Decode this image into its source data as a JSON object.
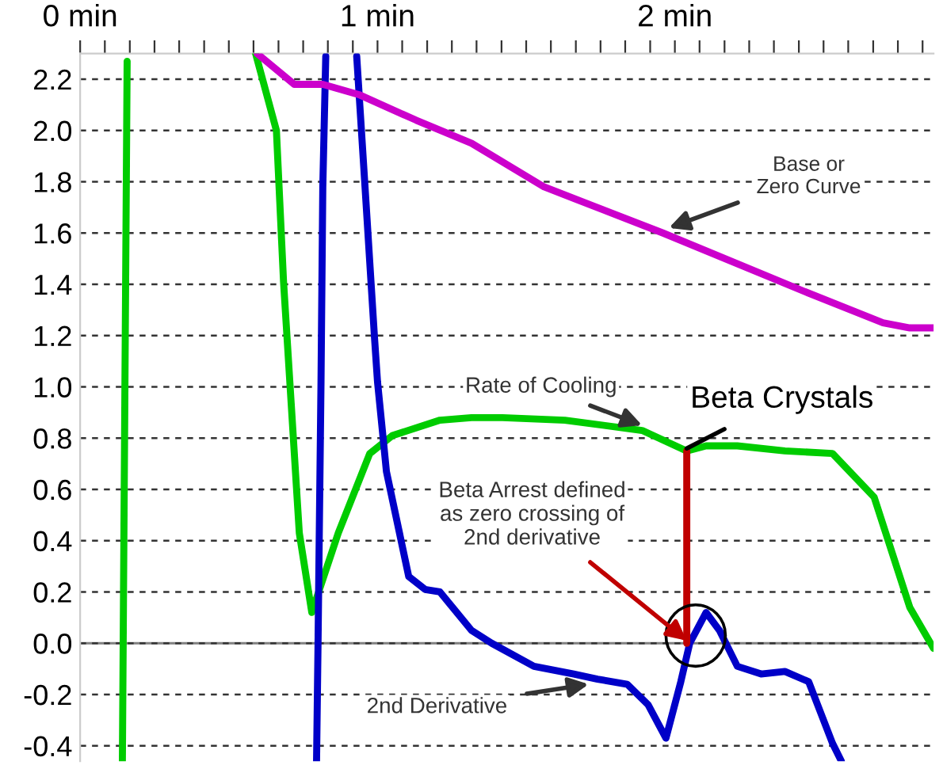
{
  "chart_data": {
    "type": "line",
    "xlim": [
      0,
      2.87
    ],
    "ylim": [
      -0.46,
      2.3
    ],
    "xticks": [
      {
        "value": 0,
        "label": "0 min"
      },
      {
        "value": 0.083,
        "label": null
      },
      {
        "value": 0.167,
        "label": null
      },
      {
        "value": 0.25,
        "label": null
      },
      {
        "value": 0.333,
        "label": null
      },
      {
        "value": 0.417,
        "label": null
      },
      {
        "value": 0.5,
        "label": null
      },
      {
        "value": 0.583,
        "label": null
      },
      {
        "value": 0.667,
        "label": null
      },
      {
        "value": 0.75,
        "label": null
      },
      {
        "value": 0.833,
        "label": null
      },
      {
        "value": 0.917,
        "label": null
      },
      {
        "value": 1,
        "label": "1 min"
      },
      {
        "value": 1.083,
        "label": null
      },
      {
        "value": 1.167,
        "label": null
      },
      {
        "value": 1.25,
        "label": null
      },
      {
        "value": 1.333,
        "label": null
      },
      {
        "value": 1.417,
        "label": null
      },
      {
        "value": 1.5,
        "label": null
      },
      {
        "value": 1.583,
        "label": null
      },
      {
        "value": 1.667,
        "label": null
      },
      {
        "value": 1.75,
        "label": null
      },
      {
        "value": 1.833,
        "label": null
      },
      {
        "value": 1.917,
        "label": null
      },
      {
        "value": 2,
        "label": "2 min"
      },
      {
        "value": 2.083,
        "label": null
      },
      {
        "value": 2.167,
        "label": null
      },
      {
        "value": 2.25,
        "label": null
      },
      {
        "value": 2.333,
        "label": null
      },
      {
        "value": 2.417,
        "label": null
      },
      {
        "value": 2.5,
        "label": null
      },
      {
        "value": 2.583,
        "label": null
      },
      {
        "value": 2.667,
        "label": null
      },
      {
        "value": 2.75,
        "label": null
      },
      {
        "value": 2.833,
        "label": null
      }
    ],
    "yticks": [
      {
        "value": -0.4,
        "label": "-0.4"
      },
      {
        "value": -0.2,
        "label": "-0.2"
      },
      {
        "value": 0,
        "label": "0.0"
      },
      {
        "value": 0.2,
        "label": "0.2"
      },
      {
        "value": 0.4,
        "label": "0.4"
      },
      {
        "value": 0.6,
        "label": "0.6"
      },
      {
        "value": 0.8,
        "label": "0.8"
      },
      {
        "value": 1.0,
        "label": "1.0"
      },
      {
        "value": 1.2,
        "label": "1.2"
      },
      {
        "value": 1.4,
        "label": "1.4"
      },
      {
        "value": 1.6,
        "label": "1.6"
      },
      {
        "value": 1.8,
        "label": "1.8"
      },
      {
        "value": 2.0,
        "label": "2.0"
      },
      {
        "value": 2.2,
        "label": "2.2"
      }
    ],
    "grid": "y",
    "marker": "none",
    "line_style": "solid",
    "ref_lines": [
      {
        "axis": "y",
        "value": 0,
        "color": "#808080",
        "line_style": "solid"
      }
    ],
    "series": [
      {
        "color": "#00cc00",
        "x": [
          0.158,
          0.142
        ],
        "values": [
          2.27,
          -0.46
        ]
      },
      {
        "color": "#00cc00",
        "x": [
          0.59,
          0.66,
          0.684,
          0.737,
          0.779,
          0.868,
          0.974,
          1.05,
          1.21,
          1.316,
          1.42,
          1.63,
          1.89,
          2.04,
          2.105,
          2.21,
          2.37,
          2.53,
          2.67,
          2.79,
          2.87
        ],
        "values": [
          2.3,
          2.0,
          1.41,
          0.43,
          0.12,
          0.43,
          0.74,
          0.81,
          0.87,
          0.88,
          0.88,
          0.87,
          0.83,
          0.75,
          0.77,
          0.77,
          0.75,
          0.74,
          0.57,
          0.14,
          -0.02
        ]
      },
      {
        "color": "#0000c8",
        "x": [
          0.795,
          0.8,
          0.81,
          0.816,
          0.826
        ],
        "values": [
          -0.46,
          0.0,
          1.02,
          1.78,
          2.29
        ]
      },
      {
        "color": "#0000c8",
        "x": [
          0.93,
          0.958,
          0.99,
          1.0,
          1.03,
          1.105,
          1.16,
          1.21,
          1.316,
          1.384,
          1.526,
          1.66,
          1.74,
          1.84,
          1.91,
          1.97,
          2.02,
          2.05,
          2.105,
          2.15,
          2.21,
          2.29,
          2.37,
          2.45,
          2.53,
          2.56
        ],
        "values": [
          2.29,
          1.78,
          1.19,
          1.02,
          0.67,
          0.26,
          0.21,
          0.2,
          0.05,
          0.0,
          -0.09,
          -0.12,
          -0.14,
          -0.16,
          -0.24,
          -0.37,
          -0.15,
          0.0,
          0.12,
          0.05,
          -0.09,
          -0.12,
          -0.11,
          -0.15,
          -0.39,
          -0.46
        ]
      },
      {
        "color": "#cc00cc",
        "x": [
          0.595,
          0.72,
          0.816,
          0.937,
          1.13,
          1.316,
          1.56,
          1.96,
          2.44,
          2.7,
          2.79,
          2.87
        ],
        "values": [
          2.3,
          2.18,
          2.18,
          2.14,
          2.04,
          1.95,
          1.78,
          1.6,
          1.37,
          1.25,
          1.23,
          1.23
        ]
      },
      {
        "color": "#c00000",
        "x": [
          2.04,
          2.04
        ],
        "values": [
          0.75,
          0.0
        ]
      }
    ],
    "annotations": [
      {
        "text": "Base or\nZero Curve",
        "x": 1.98,
        "y": 1.62
      },
      {
        "text": "Rate of Cooling",
        "x": 1.89,
        "y": 0.85
      },
      {
        "text": "Beta Crystals",
        "x": 2.04,
        "y": 0.76
      },
      {
        "text": "Beta Arrest defined\nas zero crossing of\n2nd derivative",
        "x": 2.04,
        "y": 0.01
      },
      {
        "text": "2nd Derivative",
        "x": 1.71,
        "y": -0.16
      }
    ]
  }
}
